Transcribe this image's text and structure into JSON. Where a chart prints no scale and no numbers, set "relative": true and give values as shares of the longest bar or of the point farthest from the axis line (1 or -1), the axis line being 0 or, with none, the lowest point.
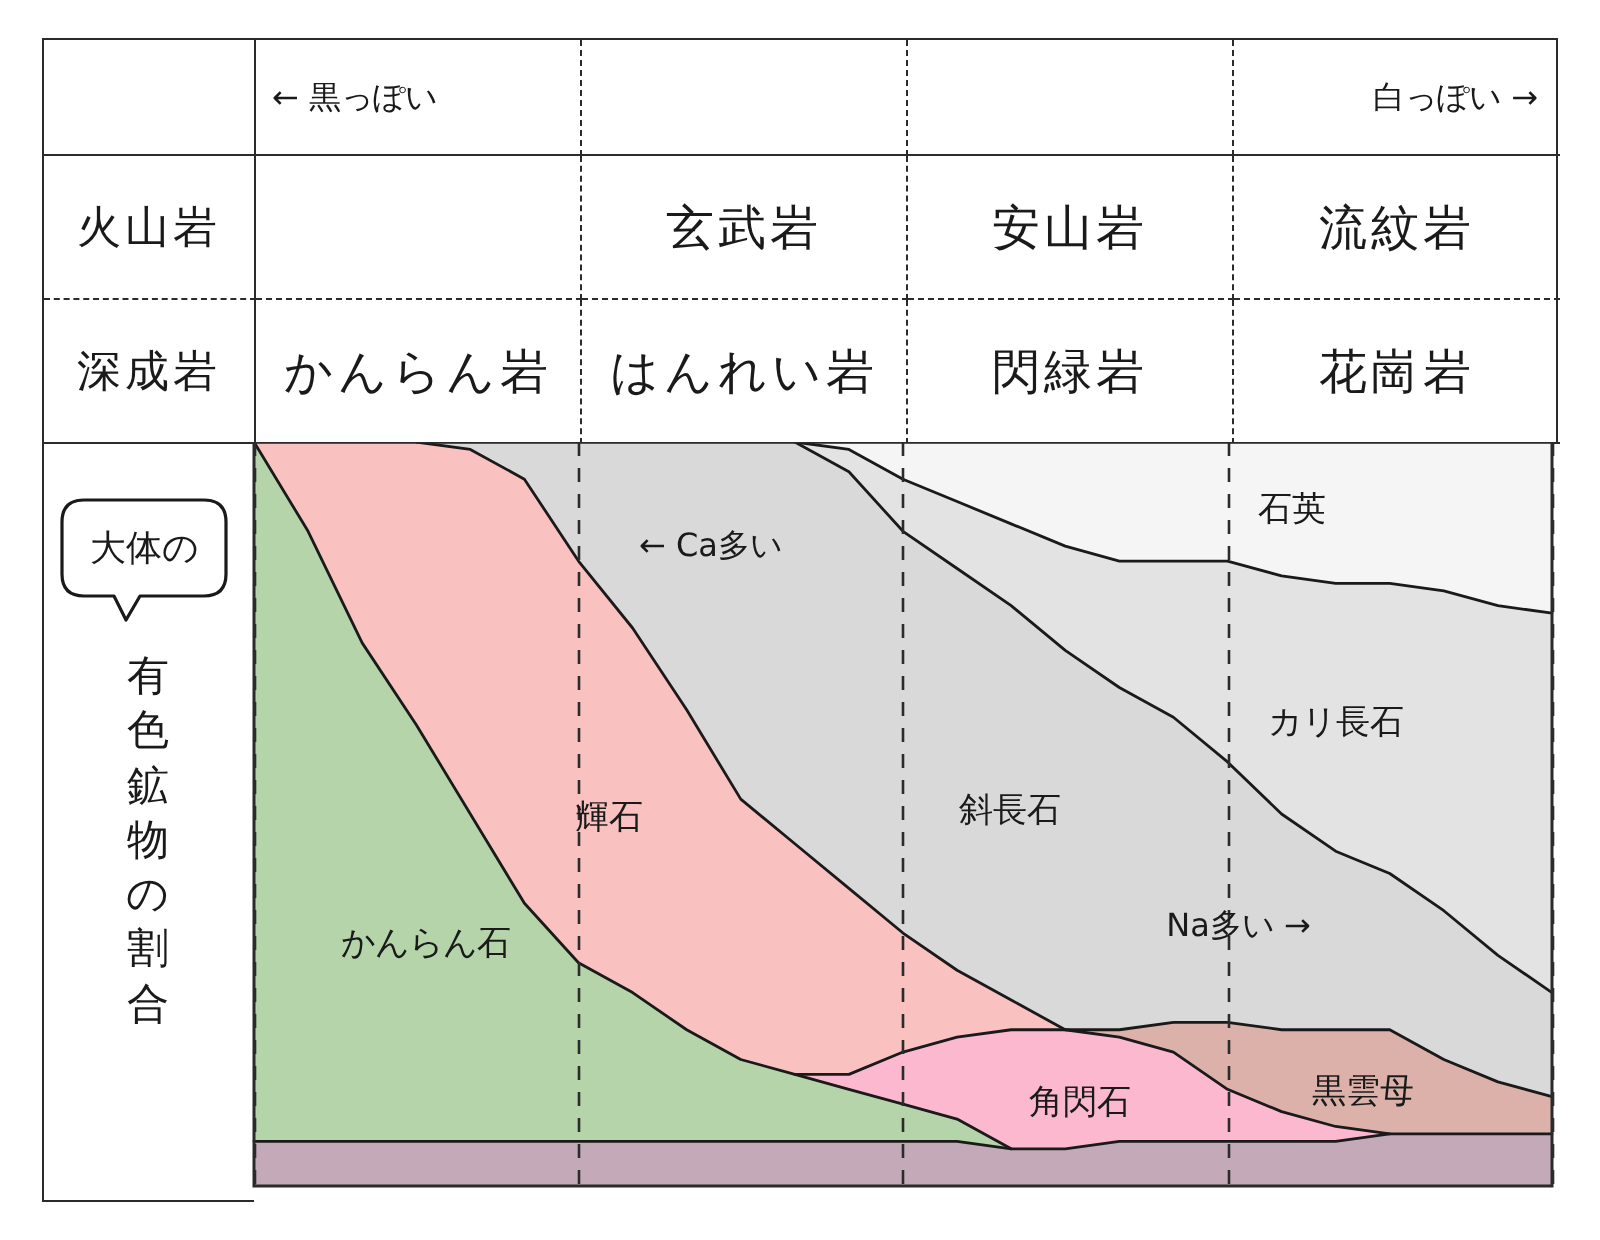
{
  "chart_data": [
    {
      "type": "other",
      "y_categories": [
        "火山岩",
        "深成岩"
      ],
      "cell_labels": [
        [
          null,
          "玄武岩",
          "安山岩",
          "流紋岩"
        ],
        [
          "かんらん岩",
          "はんれい岩",
          "閃緑岩",
          "花崗岩"
        ]
      ],
      "annotations": [
        "← 黒っぽい",
        "白っぽい →"
      ]
    },
    {
      "type": "area",
      "stacked": true,
      "relative": true,
      "grid": "x",
      "ylabel": "有色鉱物の割合",
      "annotations": [
        "大体の",
        "← Ca多い",
        "Na多い →"
      ],
      "categories": [
        null,
        null,
        null,
        null,
        null,
        null,
        null,
        null,
        null,
        null,
        null,
        null,
        null,
        null,
        null,
        null,
        null,
        null,
        null,
        null,
        null,
        null,
        null,
        null,
        null
      ],
      "series": [
        {
          "color": "#c4aab9",
          "values": [
            0.06,
            0.06,
            0.06,
            0.06,
            0.06,
            0.06,
            0.06,
            0.06,
            0.06,
            0.06,
            0.06,
            0.06,
            0.06,
            0.06,
            0.05,
            0.05,
            0.06,
            0.06,
            0.06,
            0.06,
            0.06,
            0.07,
            0.07,
            0.07,
            0.07
          ]
        },
        {
          "name": "かんらん石",
          "color": "#b5d4aa",
          "values": [
            0.94,
            0.82,
            0.67,
            0.56,
            0.44,
            0.32,
            0.24,
            0.2,
            0.15,
            0.11,
            0.09,
            0.07,
            0.05,
            0.03,
            0,
            null,
            null,
            null,
            null,
            null,
            null,
            null,
            null,
            null,
            null
          ]
        },
        {
          "name": "角閃石",
          "color": "#fcb8cf",
          "values": [
            null,
            null,
            null,
            null,
            null,
            null,
            null,
            null,
            null,
            null,
            0,
            0.02,
            0.07,
            0.11,
            0.16,
            0.16,
            0.14,
            0.12,
            0.07,
            0.04,
            0.02,
            0,
            null,
            null,
            null
          ]
        },
        {
          "name": "輝石",
          "color": "#f9c1c0",
          "values": [
            0,
            0.12,
            0.27,
            0.38,
            0.49,
            0.57,
            0.54,
            0.49,
            0.43,
            0.35,
            0.31,
            0.25,
            0.16,
            0.09,
            0.04,
            0,
            null,
            null,
            null,
            null,
            null,
            null,
            null,
            null,
            null
          ]
        },
        {
          "name": "黒雲母",
          "color": "#dbb1aa",
          "values": [
            null,
            null,
            null,
            null,
            null,
            null,
            null,
            null,
            null,
            null,
            null,
            null,
            null,
            null,
            null,
            0,
            0.01,
            0.04,
            0.09,
            0.11,
            0.13,
            0.14,
            0.1,
            0.07,
            0.05
          ]
        },
        {
          "name": "斜長石",
          "color": "#d9d9d9",
          "values": [
            null,
            null,
            null,
            0,
            0.01,
            0.05,
            0.16,
            0.25,
            0.36,
            0.48,
            0.54,
            0.56,
            0.54,
            0.54,
            0.53,
            0.51,
            0.46,
            0.41,
            0.35,
            0.29,
            0.24,
            0.21,
            0.2,
            0.17,
            0.14
          ]
        },
        {
          "name": "カリ長石",
          "color": "#e3e3e3",
          "values": [
            null,
            null,
            null,
            null,
            null,
            null,
            null,
            null,
            null,
            null,
            0,
            0.03,
            0.07,
            0.09,
            0.11,
            0.14,
            0.17,
            0.21,
            0.27,
            0.32,
            0.36,
            0.39,
            0.43,
            0.47,
            0.51
          ]
        },
        {
          "name": "石英",
          "color": "#f5f5f5",
          "values": [
            null,
            null,
            null,
            null,
            null,
            null,
            null,
            null,
            null,
            null,
            0,
            0.01,
            0.05,
            0.08,
            0.11,
            0.14,
            0.16,
            0.16,
            0.16,
            0.18,
            0.19,
            0.19,
            0.2,
            0.22,
            0.23
          ]
        }
      ]
    }
  ]
}
